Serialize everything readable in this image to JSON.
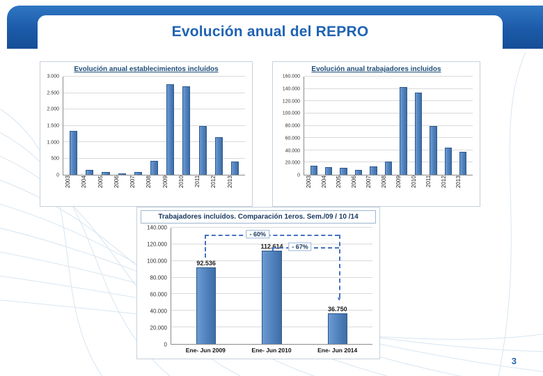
{
  "slide": {
    "title": "Evolución anual del REPRO",
    "page_number": "3",
    "accent_color": "#2063b4",
    "header_color": "#1c5aa8"
  },
  "chart_data": [
    {
      "type": "bar",
      "title": "Evolución anual establecimientos incluídos",
      "categories": [
        "2003",
        "2004",
        "2005",
        "2006",
        "2007",
        "2008",
        "2009",
        "2010",
        "2011",
        "2012",
        "2013"
      ],
      "values": [
        1350,
        150,
        75,
        50,
        75,
        430,
        2760,
        2700,
        1500,
        1150,
        400
      ],
      "xlabel": "",
      "ylabel": "",
      "ylim": [
        0,
        3000
      ],
      "ytick_labels": [
        "0",
        "500",
        "1.000",
        "1.500",
        "2.000",
        "2.500",
        "3.000"
      ],
      "grid": true,
      "legend": false,
      "rotate_x": true,
      "bar_color": "#4f81bd"
    },
    {
      "type": "bar",
      "title": "Evolución anual trabajadores incluidos",
      "categories": [
        "2003",
        "2004",
        "2005",
        "2006",
        "2007",
        "2008",
        "2009",
        "2010",
        "2011",
        "2012",
        "2013"
      ],
      "values": [
        15000,
        12000,
        11000,
        8000,
        14000,
        22000,
        143000,
        134000,
        80000,
        44000,
        38000
      ],
      "xlabel": "",
      "ylabel": "",
      "ylim": [
        0,
        160000
      ],
      "ytick_labels": [
        "0",
        "20.000",
        "40.000",
        "60.000",
        "80.000",
        "100.000",
        "120.000",
        "140.000",
        "160.000"
      ],
      "grid": true,
      "legend": false,
      "rotate_x": true,
      "bar_color": "#4f81bd"
    },
    {
      "type": "bar",
      "title": "Trabajadores incluídos. Comparación 1eros. Sem./09 / 10 /14",
      "categories": [
        "Ene- Jun 2009",
        "Ene- Jun 2010",
        "Ene- Jun 2014"
      ],
      "values": [
        92536,
        112614,
        36750
      ],
      "data_labels": [
        "92.536",
        "112.614",
        "36.750"
      ],
      "xlabel": "",
      "ylabel": "",
      "ylim": [
        0,
        140000
      ],
      "ytick_labels": [
        "0",
        "20.000",
        "40.000",
        "60.000",
        "80.000",
        "100.000",
        "120.000",
        "140.000"
      ],
      "grid": true,
      "legend": false,
      "rotate_x": false,
      "bar_color": "#4f81bd",
      "annotations": [
        {
          "label": "- 60%",
          "from": "Ene- Jun 2009",
          "to": "Ene- Jun 2014"
        },
        {
          "label": "- 67%",
          "from": "Ene- Jun 2010",
          "to": "Ene- Jun 2014"
        }
      ]
    }
  ]
}
